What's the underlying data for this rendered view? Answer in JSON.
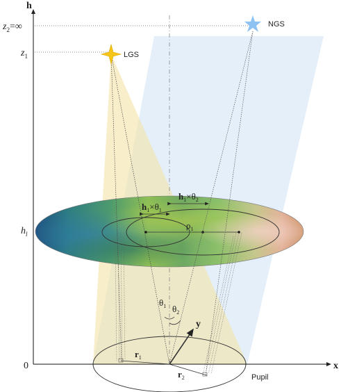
{
  "axes": {
    "h_label": "h",
    "x_label": "x",
    "y_label": "y",
    "origin_label": "0"
  },
  "heights": {
    "z2_label": "z",
    "z2_sub": "2",
    "z2_value": "=∞",
    "z1_label": "z",
    "z1_sub": "1",
    "hl_label": "h",
    "hl_sub": "l"
  },
  "sources": {
    "lgs_label": "LGS",
    "ngs_label": "NGS",
    "lgs_color": "#f5c518",
    "ngs_color": "#8ec2f2"
  },
  "layer": {
    "h1_theta1_h": "h",
    "h1_theta1_hsub": "1",
    "h1_theta1_times": "×θ",
    "h1_theta1_tsub": "1",
    "h1_theta2_h": "h",
    "h1_theta2_hsub": "1",
    "h1_theta2_times": "×θ",
    "h1_theta2_tsub": "2",
    "rho_label": "ρ",
    "rho_sub": "1"
  },
  "angles": {
    "theta1": "θ",
    "theta1_sub": "1",
    "theta2": "θ",
    "theta2_sub": "2"
  },
  "pupil": {
    "r1_label": "r",
    "r1_sub": "1",
    "r2_label": "r",
    "r2_sub": "2",
    "pupil_label": "Pupil"
  }
}
